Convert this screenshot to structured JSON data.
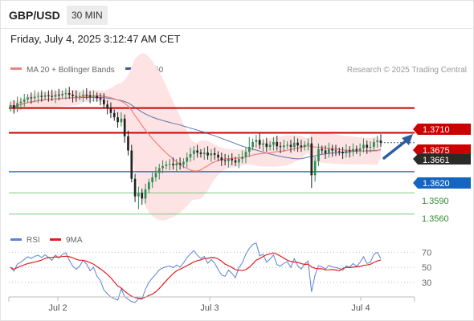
{
  "header": {
    "pair": "GBP/USD",
    "timeframe": "30 MIN"
  },
  "datetime": "Friday, July 4, 2025 3:12:47 AM CET",
  "legend": {
    "ma20_label": "MA 20 + Bollinger Bands",
    "ma50_label": "MA 50",
    "credit": "Research © 2025 Trading Central",
    "rsi_label": "RSI",
    "rsi_ma_label": "9MA"
  },
  "colors": {
    "up": "#2e8b57",
    "down": "#222222",
    "ma20": "#f08080",
    "ma50": "#3a5a9a",
    "band": "#fde3e3",
    "resistance": "#cc0000",
    "pivot": "#1565c0",
    "support": "#7ec87e",
    "rsi": "#5b82d6",
    "rsi_ma": "#e02020"
  },
  "chart_data": {
    "type": "candlestick",
    "x_ticks": [
      "Jul 2",
      "Jul 3",
      "Jul 4"
    ],
    "ylim": [
      1.3545,
      1.3755
    ],
    "price_levels": [
      {
        "value": 1.371,
        "label": "1.3710",
        "kind": "resistance"
      },
      {
        "value": 1.3675,
        "label": "1.3675",
        "kind": "resistance"
      },
      {
        "value": 1.362,
        "label": "1.3620",
        "kind": "pivot"
      },
      {
        "value": 1.359,
        "label": "1.3590",
        "kind": "support"
      },
      {
        "value": 1.356,
        "label": "1.3560",
        "kind": "support"
      }
    ],
    "current_price": {
      "value": 1.3661,
      "label": "1.3661"
    },
    "close": [
      1.3714,
      1.371,
      1.3717,
      1.3719,
      1.3722,
      1.3725,
      1.3724,
      1.3726,
      1.3727,
      1.3726,
      1.3728,
      1.3727,
      1.3726,
      1.3729,
      1.3728,
      1.373,
      1.3731,
      1.3729,
      1.3727,
      1.3726,
      1.3727,
      1.3729,
      1.3728,
      1.3726,
      1.3727,
      1.3724,
      1.3722,
      1.3715,
      1.371,
      1.3703,
      1.3697,
      1.369,
      1.3695,
      1.367,
      1.365,
      1.361,
      1.3585,
      1.359,
      1.3582,
      1.3595,
      1.3605,
      1.3612,
      1.3618,
      1.3625,
      1.3628,
      1.363,
      1.3631,
      1.3629,
      1.3632,
      1.363,
      1.3634,
      1.364,
      1.3645,
      1.365,
      1.3647,
      1.3645,
      1.3647,
      1.3643,
      1.3646,
      1.3644,
      1.364,
      1.3636,
      1.3635,
      1.3638,
      1.3636,
      1.3633,
      1.3638,
      1.3641,
      1.3648,
      1.3655,
      1.3662,
      1.3665,
      1.3658,
      1.366,
      1.3655,
      1.3658,
      1.3662,
      1.3656,
      1.3655,
      1.3657,
      1.3658,
      1.3655,
      1.3661,
      1.3657,
      1.3655,
      1.3658,
      1.366,
      1.3615,
      1.3635,
      1.3652,
      1.365,
      1.3646,
      1.3652,
      1.365,
      1.3649,
      1.3648,
      1.3646,
      1.365,
      1.3649,
      1.3652,
      1.365,
      1.3653,
      1.3658,
      1.3654,
      1.3655,
      1.3662,
      1.3664,
      1.3661
    ],
    "rsi": {
      "levels": [
        70,
        50,
        30
      ],
      "ylim": [
        15,
        80
      ]
    }
  },
  "price_axis_labels": {
    "r2": "1.3710",
    "r1": "1.3675",
    "current": "1.3661",
    "pivot": "1.3620",
    "s1": "1.3590",
    "s2": "1.3560"
  }
}
